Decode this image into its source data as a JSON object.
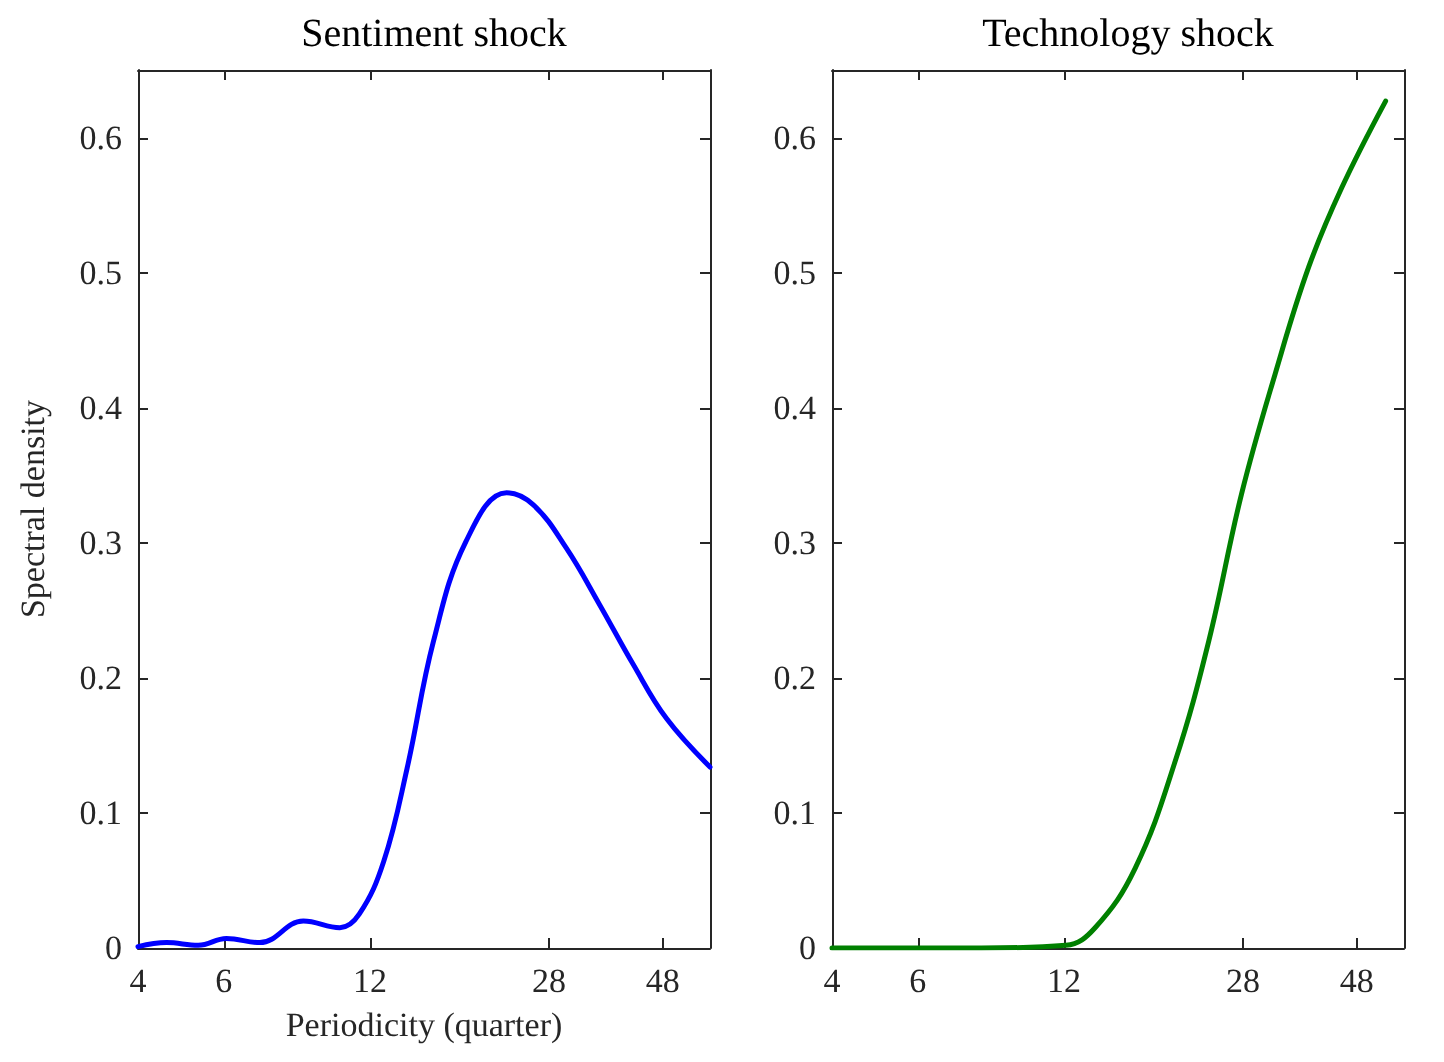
{
  "chart_data": [
    {
      "type": "line",
      "title": "Sentiment shock",
      "xlabel": "Periodicity (quarter)",
      "ylabel": "Spectral density",
      "log": "x",
      "xlim": [
        4,
        60
      ],
      "xticks": [
        4,
        6,
        12,
        28,
        48
      ],
      "ylim": [
        0,
        0.65
      ],
      "yticks": [
        0,
        0.1,
        0.2,
        0.3,
        0.4,
        0.5,
        0.6
      ],
      "grid": false,
      "marker": "none",
      "line_style": "solid",
      "series": [
        {
          "color": "#0000ff",
          "x": [
            4,
            4.58,
            5.32,
            6.08,
            7.12,
            8.75,
            10.4,
            11.4,
            12.8,
            14.3,
            16.2,
            18.9,
            22.9,
            26.0,
            30.4,
            35.6,
            41.7,
            48.8,
            60
          ],
          "values": [
            0.001,
            0.004,
            0.002,
            0.007,
            0.004,
            0.02,
            0.015,
            0.025,
            0.064,
            0.133,
            0.227,
            0.301,
            0.337,
            0.328,
            0.296,
            0.254,
            0.21,
            0.17,
            0.134
          ]
        }
      ]
    },
    {
      "type": "line",
      "title": "Technology shock",
      "log": "x",
      "xlim": [
        4,
        60
      ],
      "xticks": [
        4,
        6,
        12,
        28,
        48
      ],
      "ylim": [
        0,
        0.65
      ],
      "yticks": [
        0,
        0.1,
        0.2,
        0.3,
        0.4,
        0.5,
        0.6
      ],
      "grid": false,
      "marker": "none",
      "line_style": "solid",
      "series": [
        {
          "color": "#008000",
          "x": [
            4,
            8.1,
            12.1,
            13.9,
            16.8,
            20.3,
            23.8,
            27.8,
            32.6,
            38.2,
            44.7,
            55
          ],
          "values": [
            0,
            0,
            0.002,
            0.015,
            0.059,
            0.138,
            0.227,
            0.336,
            0.425,
            0.504,
            0.563,
            0.627
          ]
        }
      ]
    }
  ]
}
